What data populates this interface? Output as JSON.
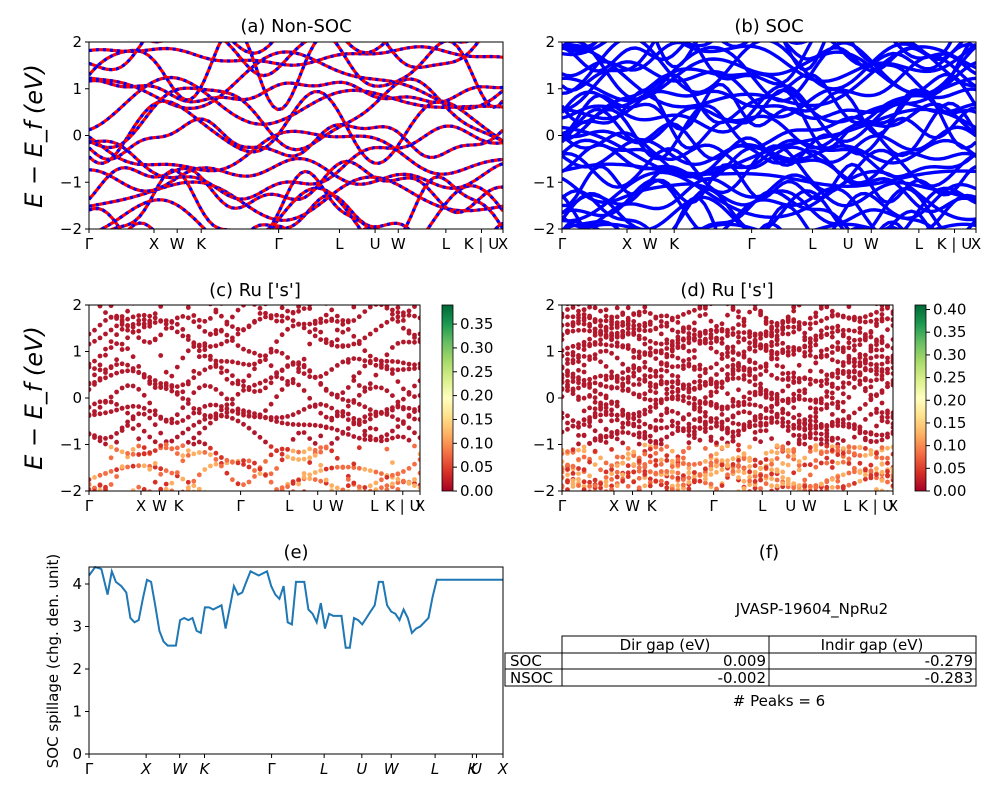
{
  "colors": {
    "nsoc_main": "#ff0000",
    "nsoc_dash": "#0000ff",
    "soc": "#0000ff",
    "spillage": "#1f77b4",
    "cmap": [
      "#a50026",
      "#d73027",
      "#f46d43",
      "#fdae61",
      "#fee08b",
      "#ffffbf",
      "#d9ef8b",
      "#a6d96a",
      "#66bd63",
      "#1a9850",
      "#006837"
    ]
  },
  "band_xticks": [
    "Γ",
    "X",
    "W",
    "K",
    "Γ",
    "L",
    "U",
    "W",
    "L",
    "K | U",
    "X"
  ],
  "spill_xticks": [
    "Γ",
    "X",
    "W",
    "K",
    "Γ",
    "L",
    "U",
    "W",
    "L",
    "K",
    "U",
    "X"
  ],
  "band_yticks": [
    "−2",
    "−1",
    "0",
    "1",
    "2"
  ],
  "band_ylabel": "E − E_f (eV)",
  "panels": {
    "a": {
      "title": "(a) Non-SOC"
    },
    "b": {
      "title": "(b) SOC"
    },
    "c": {
      "title": "(c)  Ru ['s']",
      "colorbar_ticks": [
        "0.00",
        "0.05",
        "0.10",
        "0.15",
        "0.20",
        "0.25",
        "0.30",
        "0.35"
      ],
      "cbar_max": 0.39
    },
    "d": {
      "title": "(d) Ru ['s']",
      "colorbar_ticks": [
        "0.00",
        "0.05",
        "0.10",
        "0.15",
        "0.20",
        "0.25",
        "0.30",
        "0.35",
        "0.40"
      ],
      "cbar_max": 0.41
    },
    "e": {
      "title": "(e)",
      "ylabel": "SOC spillage (chg. den. unit)",
      "yticks": [
        "0",
        "1",
        "2",
        "3",
        "4"
      ]
    },
    "f": {
      "title": "(f)",
      "material": "JVASP-19604_NpRu2",
      "table": {
        "headers": [
          "Dir gap (eV)",
          "Indir gap (eV)"
        ],
        "rows": [
          {
            "label": "SOC",
            "dir": "0.009",
            "indir": "-0.279"
          },
          {
            "label": "NSOC",
            "dir": "-0.002",
            "indir": "-0.283"
          }
        ]
      },
      "peaks": "# Peaks = 6"
    }
  },
  "chart_data": [
    {
      "type": "line",
      "title": "(a) Non-SOC",
      "ylabel": "E − E_f (eV)",
      "ylim": [
        -2,
        2
      ],
      "xlim": [
        0,
        1
      ],
      "xticks": [
        "Γ",
        "X",
        "W",
        "K",
        "Γ",
        "L",
        "U",
        "W",
        "L",
        "K | U",
        "X"
      ],
      "note": "approx. band structure, NSOC bands (red solid with blue dashed overlay)"
    },
    {
      "type": "line",
      "title": "(b) SOC",
      "ylabel": "",
      "ylim": [
        -2,
        2
      ],
      "xlim": [
        0,
        1
      ],
      "xticks": [
        "Γ",
        "X",
        "W",
        "K",
        "Γ",
        "L",
        "U",
        "W",
        "L",
        "K | U",
        "X"
      ]
    },
    {
      "type": "scatter",
      "title": "(c)  Ru ['s']",
      "ylim": [
        -2,
        2
      ],
      "colorbar_range": [
        0.0,
        0.39
      ]
    },
    {
      "type": "scatter",
      "title": "(d) Ru ['s']",
      "ylim": [
        -2,
        2
      ],
      "colorbar_range": [
        0.0,
        0.41
      ]
    },
    {
      "type": "line",
      "title": "(e)",
      "ylabel": "SOC spillage (chg. den. unit)",
      "ylim": [
        0,
        4.4
      ],
      "xticks": [
        "Γ",
        "X",
        "W",
        "K",
        "Γ",
        "L",
        "U",
        "W",
        "L",
        "K",
        "U",
        "X"
      ],
      "x": [
        0,
        0.015,
        0.03,
        0.045,
        0.055,
        0.065,
        0.078,
        0.09,
        0.1,
        0.11,
        0.12,
        0.13,
        0.14,
        0.15,
        0.16,
        0.17,
        0.18,
        0.19,
        0.2,
        0.21,
        0.22,
        0.23,
        0.24,
        0.25,
        0.26,
        0.27,
        0.28,
        0.29,
        0.3,
        0.31,
        0.32,
        0.33,
        0.34,
        0.35,
        0.36,
        0.37,
        0.38,
        0.39,
        0.4,
        0.41,
        0.42,
        0.43,
        0.44,
        0.45,
        0.46,
        0.47,
        0.48,
        0.49,
        0.5,
        0.51,
        0.52,
        0.53,
        0.54,
        0.55,
        0.56,
        0.57,
        0.58,
        0.59,
        0.6,
        0.61,
        0.62,
        0.63,
        0.64,
        0.65,
        0.66,
        0.67,
        0.68,
        0.69,
        0.7,
        0.71,
        0.72,
        0.73,
        0.74,
        0.75,
        0.76,
        0.77,
        0.78,
        0.79,
        0.8,
        0.81,
        0.82,
        0.83,
        0.84,
        0.85,
        0.86,
        0.87,
        0.88,
        0.89,
        0.9,
        0.91,
        0.92,
        0.93,
        0.94,
        0.95,
        0.96,
        0.97,
        0.98,
        0.99,
        1.0
      ],
      "y": [
        4.2,
        4.4,
        4.35,
        3.75,
        4.3,
        4.05,
        3.95,
        3.8,
        3.2,
        3.1,
        3.15,
        3.65,
        4.1,
        4.05,
        3.5,
        2.9,
        2.65,
        2.55,
        2.55,
        2.55,
        3.15,
        3.2,
        3.15,
        3.2,
        2.9,
        2.85,
        3.45,
        3.45,
        3.4,
        3.45,
        3.5,
        2.95,
        3.45,
        3.95,
        3.75,
        3.8,
        4.05,
        4.3,
        4.25,
        4.2,
        4.25,
        4.3,
        3.95,
        3.75,
        3.65,
        3.95,
        3.1,
        3.05,
        4.05,
        4.05,
        4.05,
        3.4,
        3.3,
        3.1,
        3.55,
        2.95,
        3.3,
        3.25,
        3.25,
        3.25,
        2.5,
        2.5,
        3.2,
        3.15,
        3.05,
        3.2,
        3.35,
        3.5,
        4.05,
        4.05,
        3.5,
        3.35,
        3.3,
        3.15,
        3.4,
        3.2,
        2.85,
        2.95,
        3.0,
        3.1,
        3.2,
        3.7,
        4.1,
        4.1,
        4.1,
        4.1,
        4.1,
        4.1,
        4.1,
        4.1,
        4.1,
        4.1,
        4.1,
        4.1,
        4.1,
        4.1,
        4.1,
        4.1,
        4.1
      ]
    }
  ]
}
